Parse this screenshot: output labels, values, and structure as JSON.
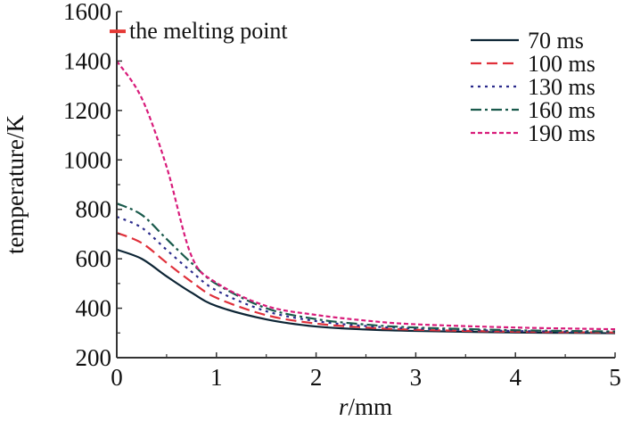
{
  "chart_data": {
    "type": "line",
    "title": "",
    "xlabel_italic": "r",
    "xlabel_unit": "/mm",
    "ylabel": "temperature/K",
    "xlim": [
      0,
      5
    ],
    "ylim": [
      200,
      1600
    ],
    "xticks": [
      "0",
      "1",
      "2",
      "3",
      "4",
      "5"
    ],
    "yticks": [
      "200",
      "400",
      "600",
      "800",
      "1000",
      "1200",
      "1400",
      "1600"
    ],
    "grid": false,
    "legend_position": "top-right",
    "annotation": {
      "text": "the melting point",
      "value": 1520,
      "color": "#e53935"
    },
    "x": [
      0,
      0.25,
      0.5,
      0.75,
      1,
      1.5,
      2,
      2.5,
      3,
      4,
      5
    ],
    "series": [
      {
        "name": "70 ms",
        "color": "#0d2535",
        "dash": "solid",
        "values": [
          637,
          600,
          529,
          463,
          409,
          355,
          326,
          314,
          308,
          302,
          299
        ]
      },
      {
        "name": "100 ms",
        "color": "#e0303a",
        "dash": "dashed",
        "values": [
          705,
          664,
          584,
          507,
          442,
          372,
          338,
          322,
          313,
          305,
          302
        ]
      },
      {
        "name": "130 ms",
        "color": "#2b2b8c",
        "dash": "dotted",
        "values": [
          770,
          726,
          636,
          548,
          472,
          388,
          348,
          328,
          318,
          308,
          304
        ]
      },
      {
        "name": "160 ms",
        "color": "#1a5a4c",
        "dash": "dash-dot",
        "values": [
          824,
          778,
          680,
          583,
          498,
          400,
          356,
          334,
          322,
          311,
          306
        ]
      },
      {
        "name": "190 ms",
        "color": "#d81b7a",
        "dash": "short-dash",
        "values": [
          1400,
          1250,
          972,
          611,
          503,
          409,
          373,
          350,
          335,
          322,
          315
        ]
      }
    ]
  }
}
